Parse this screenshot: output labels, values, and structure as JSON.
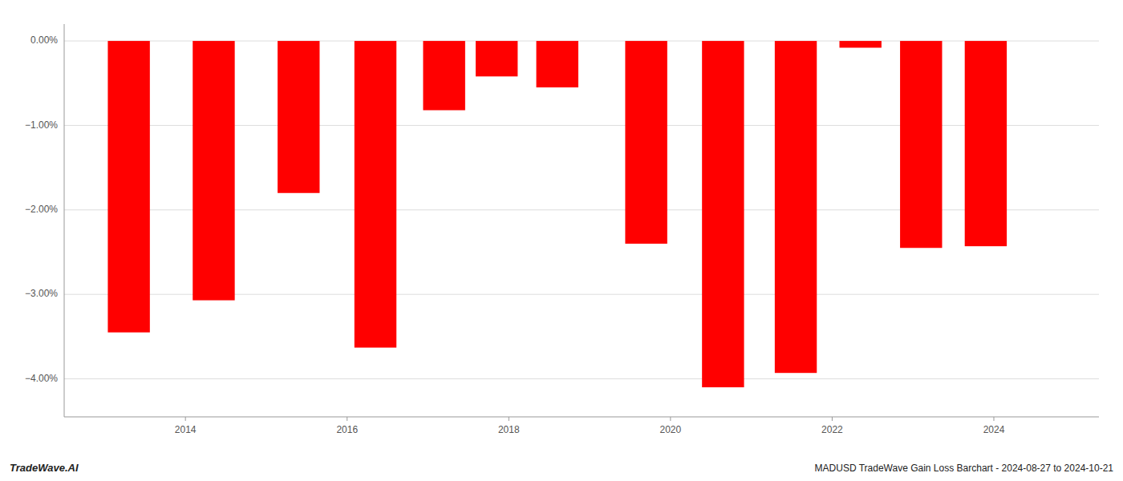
{
  "chart_data": {
    "type": "bar",
    "x": [
      2013.3,
      2014.35,
      2015.4,
      2016.35,
      2017.2,
      2017.85,
      2018.6,
      2019.7,
      2020.65,
      2021.55,
      2022.35,
      2023.1,
      2023.9
    ],
    "values": [
      -3.45,
      -3.07,
      -1.8,
      -3.63,
      -0.82,
      -0.42,
      -0.55,
      -2.4,
      -4.1,
      -3.93,
      -0.08,
      -2.45,
      -2.43
    ],
    "color": "#ff0000",
    "xlim": [
      2012.5,
      2025.3
    ],
    "xticks": [
      2014,
      2016,
      2018,
      2020,
      2022,
      2024
    ],
    "ylim": [
      -4.45,
      0.2
    ],
    "yticks": [
      {
        "value": 0.0,
        "label": "0.00%"
      },
      {
        "value": -1.0,
        "label": "−1.00%"
      },
      {
        "value": -2.0,
        "label": "−2.00%"
      },
      {
        "value": -3.0,
        "label": "−3.00%"
      },
      {
        "value": -4.0,
        "label": "−4.00%"
      }
    ],
    "grid": true,
    "annotations": [
      "TradeWave.AI",
      "MADUSD TradeWave Gain Loss Barchart - 2024-08-27 to 2024-10-21"
    ]
  }
}
